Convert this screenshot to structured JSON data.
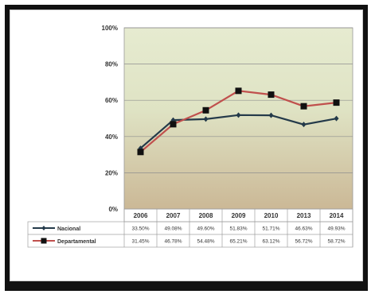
{
  "chart_data": {
    "type": "line",
    "title": "",
    "xlabel": "",
    "ylabel": "",
    "categories": [
      "2006",
      "2007",
      "2008",
      "2009",
      "2010",
      "2013",
      "2014"
    ],
    "ylim": [
      0,
      100
    ],
    "yticks": [
      "0%",
      "20%",
      "40%",
      "60%",
      "80%",
      "100%"
    ],
    "grid": true,
    "legend": "table-below",
    "plot_background": "#d9e3bc",
    "series": [
      {
        "name": "Nacional",
        "values": [
          33.5,
          49.08,
          49.6,
          51.83,
          51.71,
          46.63,
          49.93
        ],
        "labels": [
          "33.50%",
          "49.08%",
          "49.60%",
          "51.83%",
          "51.71%",
          "46.63%",
          "49.93%"
        ],
        "color": "#243a4a",
        "marker": "diamond"
      },
      {
        "name": "Departamental",
        "values": [
          31.45,
          46.78,
          54.48,
          65.21,
          63.12,
          56.72,
          58.72
        ],
        "labels": [
          "31.45%",
          "46.78%",
          "54.48%",
          "65.21%",
          "63.12%",
          "56.72%",
          "58.72%"
        ],
        "color": "#c0504d",
        "marker": "square"
      }
    ]
  }
}
